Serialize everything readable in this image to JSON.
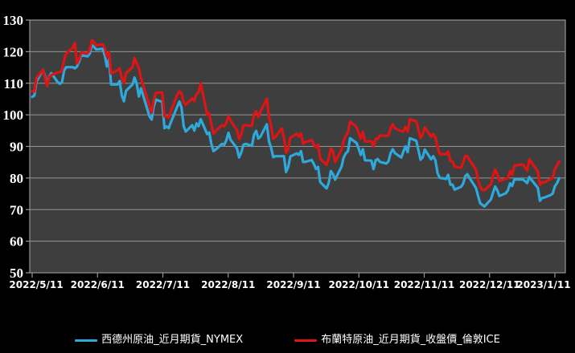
{
  "chart_data": {
    "type": "line",
    "title": "",
    "legend_position": "bottom",
    "grid": "horizontal-only",
    "colors": {
      "page_bg": "#000000",
      "plot_bg": "#3E3E3E",
      "grid": "#969696",
      "text": "#FFFFFF",
      "wti_blue": "#2FA8DC",
      "brent_red": "#DF1414"
    },
    "y_axis": {
      "min": 50,
      "max": 130,
      "step": 10,
      "tick_labels": [
        "50",
        "60",
        "70",
        "80",
        "90",
        "100",
        "110",
        "120",
        "130"
      ]
    },
    "x_axis": {
      "ticks": [
        "2022/5/11",
        "2022/6/11",
        "2022/7/11",
        "2022/8/11",
        "2022/9/11",
        "2022/10/11",
        "2022/11/11",
        "2022/12/11",
        "2023/1/11"
      ]
    },
    "dates": [
      "2022/5/11",
      "2022/5/12",
      "2022/5/13",
      "2022/5/16",
      "2022/5/17",
      "2022/5/18",
      "2022/5/19",
      "2022/5/20",
      "2022/5/23",
      "2022/5/24",
      "2022/5/25",
      "2022/5/26",
      "2022/5/27",
      "2022/5/30",
      "2022/5/31",
      "2022/6/1",
      "2022/6/2",
      "2022/6/3",
      "2022/6/6",
      "2022/6/7",
      "2022/6/8",
      "2022/6/9",
      "2022/6/10",
      "2022/6/13",
      "2022/6/14",
      "2022/6/15",
      "2022/6/16",
      "2022/6/17",
      "2022/6/20",
      "2022/6/21",
      "2022/6/22",
      "2022/6/23",
      "2022/6/24",
      "2022/6/27",
      "2022/6/28",
      "2022/6/29",
      "2022/6/30",
      "2022/7/1",
      "2022/7/5",
      "2022/7/6",
      "2022/7/7",
      "2022/7/8",
      "2022/7/11",
      "2022/7/12",
      "2022/7/13",
      "2022/7/14",
      "2022/7/15",
      "2022/7/18",
      "2022/7/19",
      "2022/7/20",
      "2022/7/21",
      "2022/7/22",
      "2022/7/25",
      "2022/7/26",
      "2022/7/27",
      "2022/7/28",
      "2022/7/29",
      "2022/8/1",
      "2022/8/2",
      "2022/8/3",
      "2022/8/4",
      "2022/8/5",
      "2022/8/8",
      "2022/8/9",
      "2022/8/10",
      "2022/8/11",
      "2022/8/12",
      "2022/8/15",
      "2022/8/16",
      "2022/8/17",
      "2022/8/18",
      "2022/8/19",
      "2022/8/22",
      "2022/8/23",
      "2022/8/24",
      "2022/8/25",
      "2022/8/26",
      "2022/8/29",
      "2022/8/30",
      "2022/8/31",
      "2022/9/1",
      "2022/9/2",
      "2022/9/5",
      "2022/9/6",
      "2022/9/7",
      "2022/9/8",
      "2022/9/9",
      "2022/9/12",
      "2022/9/13",
      "2022/9/14",
      "2022/9/15",
      "2022/9/16",
      "2022/9/19",
      "2022/9/20",
      "2022/9/21",
      "2022/9/22",
      "2022/9/23",
      "2022/9/26",
      "2022/9/27",
      "2022/9/28",
      "2022/9/29",
      "2022/9/30",
      "2022/10/3",
      "2022/10/4",
      "2022/10/5",
      "2022/10/6",
      "2022/10/7",
      "2022/10/10",
      "2022/10/11",
      "2022/10/12",
      "2022/10/13",
      "2022/10/14",
      "2022/10/17",
      "2022/10/18",
      "2022/10/19",
      "2022/10/20",
      "2022/10/21",
      "2022/10/24",
      "2022/10/25",
      "2022/10/26",
      "2022/10/27",
      "2022/10/28",
      "2022/10/31",
      "2022/11/1",
      "2022/11/2",
      "2022/11/3",
      "2022/11/4",
      "2022/11/7",
      "2022/11/8",
      "2022/11/9",
      "2022/11/10",
      "2022/11/11",
      "2022/11/14",
      "2022/11/15",
      "2022/11/16",
      "2022/11/17",
      "2022/11/18",
      "2022/11/21",
      "2022/11/22",
      "2022/11/23",
      "2022/11/24",
      "2022/11/25",
      "2022/11/28",
      "2022/11/29",
      "2022/11/30",
      "2022/12/1",
      "2022/12/2",
      "2022/12/5",
      "2022/12/6",
      "2022/12/7",
      "2022/12/8",
      "2022/12/9",
      "2022/12/12",
      "2022/12/13",
      "2022/12/14",
      "2022/12/15",
      "2022/12/16",
      "2022/12/19",
      "2022/12/20",
      "2022/12/21",
      "2022/12/22",
      "2022/12/23",
      "2022/12/27",
      "2022/12/28",
      "2022/12/29",
      "2022/12/30",
      "2023/1/3",
      "2023/1/4",
      "2023/1/5",
      "2023/1/6",
      "2023/1/9",
      "2023/1/10",
      "2023/1/11",
      "2023/1/12",
      "2023/1/13"
    ],
    "series": [
      {
        "name": "西德州原油_近月期貨_NYMEX",
        "color": "#2FA8DC",
        "values": [
          105.7,
          106.1,
          110.5,
          114.2,
          112.4,
          109.6,
          112.2,
          113.2,
          110.3,
          109.8,
          110.3,
          114.1,
          115.1,
          115.1,
          114.7,
          115.3,
          116.9,
          118.9,
          118.5,
          119.4,
          122.1,
          121.5,
          120.7,
          120.9,
          118.9,
          115.3,
          117.6,
          109.6,
          109.6,
          110.7,
          106.2,
          104.3,
          107.6,
          109.6,
          111.8,
          109.8,
          105.8,
          108.4,
          99.5,
          98.5,
          102.7,
          104.8,
          104.1,
          95.8,
          96.3,
          95.8,
          97.6,
          102.6,
          104.2,
          102.3,
          96.4,
          94.7,
          96.7,
          95.0,
          97.3,
          96.4,
          98.6,
          93.9,
          94.4,
          90.7,
          88.5,
          89.0,
          90.8,
          90.5,
          91.9,
          94.3,
          92.1,
          89.4,
          86.5,
          88.1,
          90.5,
          90.8,
          90.2,
          93.7,
          94.9,
          92.5,
          93.1,
          97.0,
          91.6,
          89.6,
          86.6,
          86.9,
          86.9,
          86.9,
          81.9,
          83.5,
          86.8,
          87.8,
          87.3,
          88.5,
          85.1,
          85.1,
          85.7,
          84.5,
          82.9,
          83.5,
          78.7,
          76.7,
          78.5,
          82.2,
          81.2,
          79.5,
          83.6,
          86.5,
          87.8,
          88.5,
          92.6,
          91.1,
          89.4,
          87.3,
          89.1,
          85.6,
          85.5,
          82.8,
          85.6,
          86.0,
          85.1,
          84.6,
          85.3,
          87.9,
          89.1,
          87.9,
          86.5,
          88.4,
          90.0,
          88.2,
          92.6,
          91.8,
          88.9,
          85.8,
          86.5,
          89.0,
          85.9,
          86.9,
          85.6,
          81.6,
          80.1,
          79.7,
          81.0,
          77.9,
          77.9,
          76.3,
          77.2,
          78.2,
          80.6,
          81.2,
          80.0,
          76.9,
          74.3,
          72.0,
          71.5,
          71.0,
          73.2,
          75.4,
          77.3,
          76.1,
          74.3,
          75.2,
          76.1,
          78.3,
          77.5,
          79.6,
          79.5,
          79.0,
          78.4,
          80.3,
          76.9,
          72.8,
          73.7,
          73.8,
          74.6,
          75.1,
          77.4,
          78.4,
          79.9
        ]
      },
      {
        "name": "布蘭特原油_近月期貨_收盤價_倫敦ICE",
        "color": "#DF1414",
        "values": [
          107.5,
          107.4,
          111.6,
          114.2,
          111.9,
          109.1,
          112.0,
          112.6,
          113.4,
          113.6,
          114.0,
          117.4,
          119.4,
          121.2,
          122.8,
          116.3,
          117.6,
          119.7,
          119.5,
          120.6,
          123.6,
          123.1,
          122.0,
          122.3,
          121.2,
          118.5,
          119.8,
          113.1,
          114.1,
          114.7,
          111.7,
          110.1,
          113.1,
          115.1,
          118.0,
          116.3,
          114.8,
          111.6,
          102.8,
          100.7,
          104.7,
          107.0,
          107.1,
          99.5,
          99.6,
          99.1,
          101.2,
          106.3,
          107.4,
          106.9,
          103.9,
          103.2,
          105.2,
          104.4,
          106.6,
          107.1,
          110.0,
          100.0,
          100.5,
          96.8,
          94.1,
          94.9,
          96.7,
          96.3,
          97.4,
          99.6,
          98.2,
          95.1,
          92.3,
          93.7,
          96.6,
          96.7,
          96.5,
          100.2,
          101.2,
          99.3,
          101.0,
          105.1,
          99.3,
          96.5,
          92.4,
          93.0,
          95.7,
          92.8,
          88.0,
          89.2,
          92.8,
          94.0,
          93.2,
          94.1,
          90.8,
          91.4,
          92.0,
          90.6,
          89.8,
          90.5,
          86.2,
          84.1,
          86.3,
          89.3,
          88.5,
          85.1,
          88.9,
          91.8,
          93.4,
          94.4,
          97.9,
          96.2,
          94.3,
          92.5,
          94.6,
          91.6,
          91.6,
          90.0,
          92.4,
          92.4,
          93.5,
          93.3,
          93.5,
          95.7,
          97.0,
          95.8,
          94.8,
          94.7,
          96.2,
          94.7,
          98.6,
          97.9,
          95.4,
          92.7,
          93.7,
          96.0,
          93.1,
          93.9,
          92.9,
          89.8,
          87.6,
          87.5,
          88.4,
          85.4,
          85.3,
          83.6,
          83.2,
          84.9,
          87.0,
          86.9,
          85.6,
          82.7,
          79.4,
          77.2,
          76.2,
          76.1,
          78.0,
          80.7,
          82.7,
          81.2,
          79.0,
          79.8,
          80.0,
          82.2,
          81.0,
          83.9,
          84.3,
          83.3,
          82.3,
          85.9,
          82.1,
          77.8,
          78.7,
          78.6,
          79.7,
          80.1,
          82.7,
          84.0,
          85.3
        ]
      }
    ]
  },
  "legend": {
    "items": [
      {
        "label": "西德州原油_近月期貨_NYMEX",
        "color": "#2FA8DC"
      },
      {
        "label": "布蘭特原油_近月期貨_收盤價_倫敦ICE",
        "color": "#DF1414"
      }
    ]
  }
}
